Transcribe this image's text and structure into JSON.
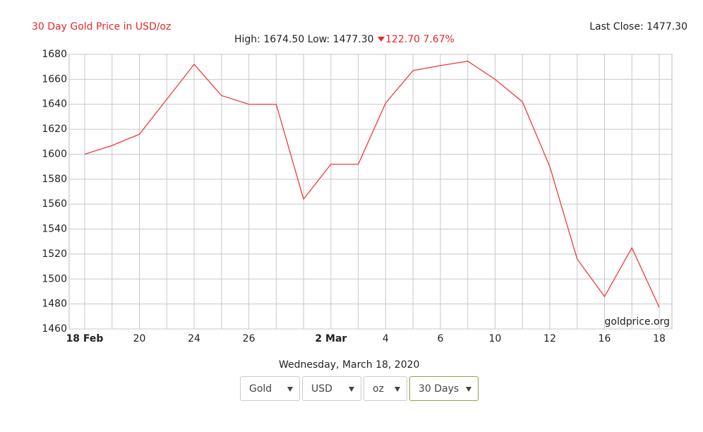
{
  "chart_data": {
    "type": "line",
    "title": "30 Day Gold Price in USD/oz",
    "categories": [
      "18 Feb",
      null,
      "20",
      null,
      "24",
      null,
      "26",
      null,
      null,
      "2 Mar",
      null,
      "4",
      null,
      "6",
      null,
      "10",
      null,
      "12",
      null,
      "16",
      null,
      "18"
    ],
    "series": [
      {
        "name": "Gold",
        "color": "#f03c3c",
        "values": [
          1600,
          1607,
          1616,
          1644,
          1672,
          1647,
          1640,
          1640,
          1564,
          1592,
          1592,
          1641,
          1667,
          1671,
          1674.5,
          1660,
          1642,
          1590,
          1516,
          1486,
          1525,
          1477.3
        ]
      }
    ],
    "ylim": [
      1460,
      1680
    ],
    "yticks": [
      1460,
      1480,
      1500,
      1520,
      1540,
      1560,
      1580,
      1600,
      1620,
      1640,
      1660,
      1680
    ],
    "grid": true,
    "watermark": "goldprice.org"
  },
  "header": {
    "last_close": "Last Close: 1477.30",
    "high_low": "High: 1674.50 Low: 1477.30",
    "change": "122.70 7.67%"
  },
  "footer": {
    "date": "Wednesday, March 18, 2020"
  },
  "controls": [
    "Gold",
    "USD",
    "oz",
    "30 Days"
  ]
}
